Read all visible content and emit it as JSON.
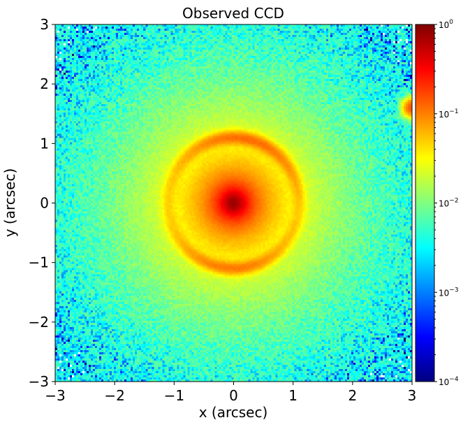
{
  "chart_data": {
    "type": "heatmap",
    "title": "Observed CCD",
    "xlabel": "x (arcsec)",
    "ylabel": "y (arcsec)",
    "xlim": [
      -3,
      3
    ],
    "ylim": [
      -3,
      3
    ],
    "x_ticks": [
      -3,
      -2,
      -1,
      0,
      1,
      2,
      3
    ],
    "y_ticks": [
      -3,
      -2,
      -1,
      0,
      1,
      2,
      3
    ],
    "x_tick_labels": [
      "−3",
      "−2",
      "−1",
      "0",
      "1",
      "2",
      "3"
    ],
    "y_tick_labels": [
      "−3",
      "−2",
      "−1",
      "0",
      "1",
      "2",
      "3"
    ],
    "colormap": "jet",
    "color_scale": "log",
    "colorbar": {
      "range": [
        0.0001,
        1
      ],
      "ticks": [
        {
          "value": 0.0001,
          "base": "10",
          "exponent": "−4"
        },
        {
          "value": 0.001,
          "base": "10",
          "exponent": "−3"
        },
        {
          "value": 0.01,
          "base": "10",
          "exponent": "−2"
        },
        {
          "value": 0.1,
          "base": "10",
          "exponent": "−1"
        },
        {
          "value": 1,
          "base": "10",
          "exponent": "0"
        }
      ]
    },
    "features": {
      "central_peak": {
        "x": 0.0,
        "y": 0.0,
        "value": 0.7
      },
      "arc_radius_arcsec": 1.1,
      "secondary_source": {
        "x": 3.0,
        "y": 1.6,
        "value": 0.15
      },
      "background_level": 0.0015
    }
  }
}
